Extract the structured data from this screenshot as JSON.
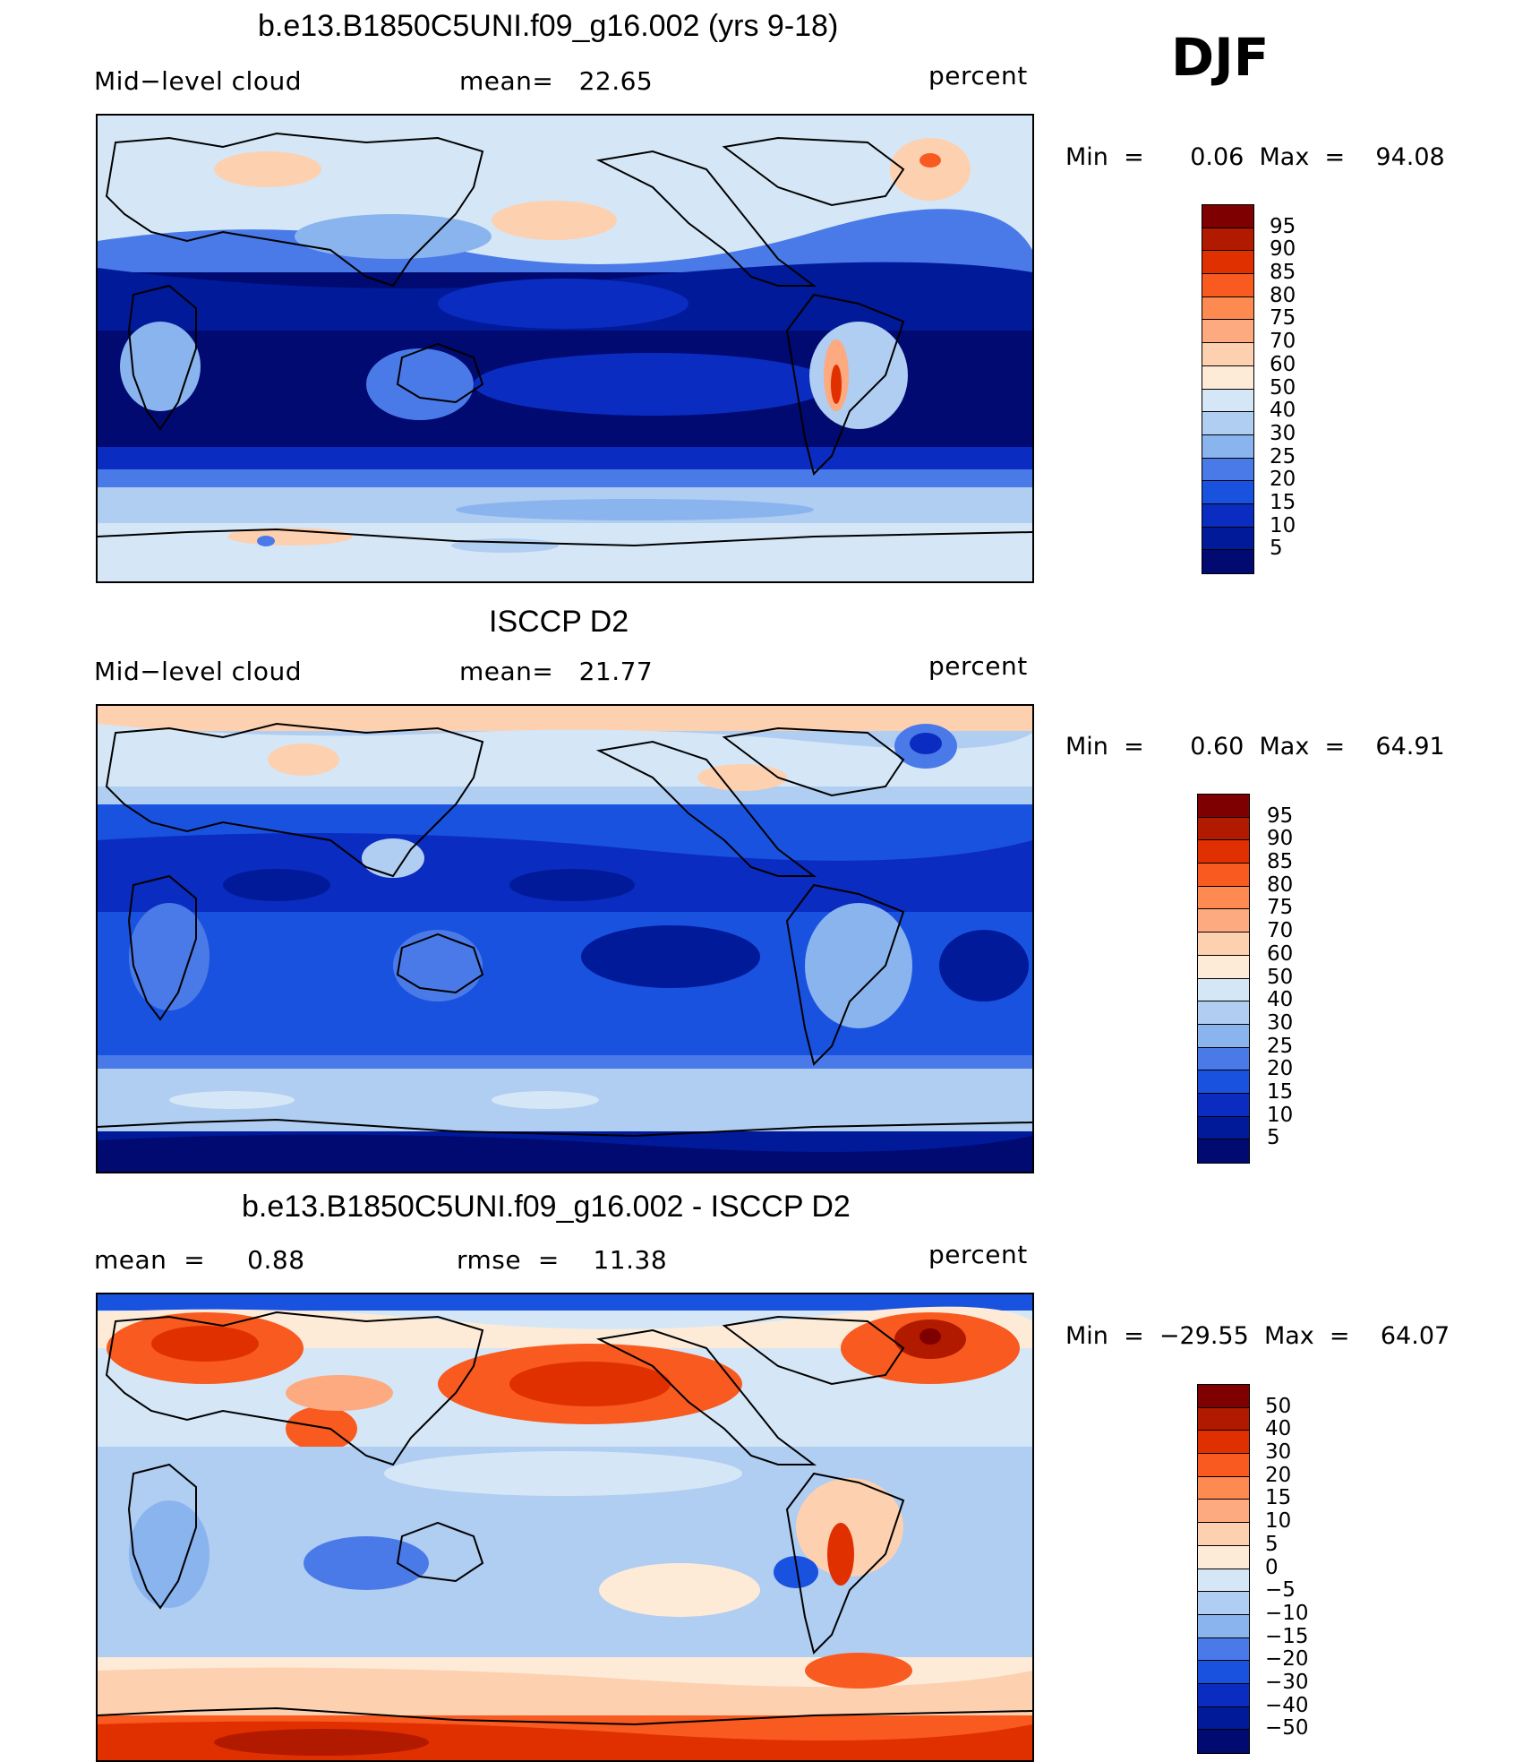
{
  "page": {
    "season": "DJF",
    "panels": [
      {
        "title": "b.e13.B1850C5UNI.f09_g16.002 (yrs 9-18)",
        "left_label": "Mid−level cloud",
        "center_label": "mean=   22.65",
        "right_label": "percent",
        "minmax": "Min  =      0.06  Max  =    94.08",
        "colorbar_labels": [
          "95",
          "90",
          "85",
          "80",
          "75",
          "70",
          "60",
          "50",
          "40",
          "30",
          "25",
          "20",
          "15",
          "10",
          "5"
        ],
        "colorbar_colors": [
          "#7f0000",
          "#b21a00",
          "#e03000",
          "#f85a20",
          "#fd8a50",
          "#fdaa80",
          "#fdd0b0",
          "#fdebd8",
          "#d5e7f7",
          "#b0cdf2",
          "#8ab4ee",
          "#4a7ae8",
          "#1a52e0",
          "#0a2cc0",
          "#001a9a",
          "#000a70"
        ]
      },
      {
        "title": "ISCCP D2",
        "left_label": "Mid−level cloud",
        "center_label": "mean=   21.77",
        "right_label": "percent",
        "minmax": "Min  =      0.60  Max  =    64.91",
        "colorbar_labels": [
          "95",
          "90",
          "85",
          "80",
          "75",
          "70",
          "60",
          "50",
          "40",
          "30",
          "25",
          "20",
          "15",
          "10",
          "5"
        ],
        "colorbar_colors": [
          "#7f0000",
          "#b21a00",
          "#e03000",
          "#f85a20",
          "#fd8a50",
          "#fdaa80",
          "#fdd0b0",
          "#fdebd8",
          "#d5e7f7",
          "#b0cdf2",
          "#8ab4ee",
          "#4a7ae8",
          "#1a52e0",
          "#0a2cc0",
          "#001a9a",
          "#000a70"
        ]
      },
      {
        "title": "b.e13.B1850C5UNI.f09_g16.002 - ISCCP D2",
        "left_label": "mean  =     0.88",
        "center_label": "rmse  =    11.38",
        "right_label": "percent",
        "minmax": "Min  =  −29.55  Max  =    64.07",
        "colorbar_labels": [
          "50",
          "40",
          "30",
          "20",
          "15",
          "10",
          "5",
          "0",
          "−5",
          "−10",
          "−15",
          "−20",
          "−30",
          "−40",
          "−50"
        ],
        "colorbar_colors": [
          "#7f0000",
          "#b21a00",
          "#e03000",
          "#f85a20",
          "#fd8a50",
          "#fdaa80",
          "#fdd0b0",
          "#fdebd8",
          "#d5e7f7",
          "#b0cdf2",
          "#8ab4ee",
          "#4a7ae8",
          "#1a52e0",
          "#0a2cc0",
          "#001a9a",
          "#000a70"
        ]
      }
    ]
  },
  "map_palette": {
    "deep_blue": "#000a70",
    "dark_blue": "#001a9a",
    "blue": "#0a2cc0",
    "mid_blue": "#1a52e0",
    "light_blue": "#4a7ae8",
    "pale_blue": "#8ab4ee",
    "very_pale_blue": "#b0cdf2",
    "near_white_blue": "#d5e7f7",
    "cream": "#fdebd8",
    "peach": "#fdd0b0",
    "salmon": "#fdaa80",
    "orange": "#f85a20",
    "red": "#e03000",
    "dark_red": "#7f0000"
  }
}
